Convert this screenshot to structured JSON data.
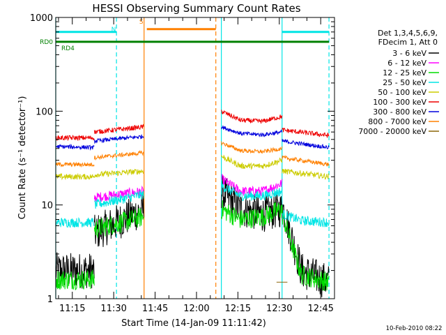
{
  "chart_data": {
    "type": "line",
    "title": "HESSI Observing Summary Count Rates",
    "xlabel": "Start Time (14-Jan-09 11:11:42)",
    "ylabel": "Count Rate (s⁻¹ detector⁻¹)",
    "yscale": "log",
    "xlim": [
      "11:09",
      "12:50"
    ],
    "ylim": [
      1,
      1000
    ],
    "xticks": [
      "11:15",
      "11:30",
      "11:45",
      "12:00",
      "12:15",
      "12:30",
      "12:45"
    ],
    "yticks": [
      "1",
      "10",
      "100",
      "1000"
    ],
    "date_stamp": "10-Feb-2010 08:22",
    "legend": {
      "position": "right",
      "header": [
        "Det 1,3,4,5,6,9,",
        "FDecim 1, Att 0"
      ],
      "entries": [
        {
          "label": "3 - 6 keV",
          "color": "#000000"
        },
        {
          "label": "6 - 12 keV",
          "color": "#ff00ff"
        },
        {
          "label": "12 - 25 keV",
          "color": "#00dd00"
        },
        {
          "label": "25 - 50 keV",
          "color": "#00e5e5"
        },
        {
          "label": "50 - 100 keV",
          "color": "#cccc00"
        },
        {
          "label": "100 - 300 keV",
          "color": "#ee0000"
        },
        {
          "label": "300 - 800 keV",
          "color": "#0000dd"
        },
        {
          "label": "800 - 7000 keV",
          "color": "#ff8000"
        },
        {
          "label": "7000 - 20000 keV",
          "color": "#8b6508"
        }
      ]
    },
    "flags": [
      {
        "label": "N",
        "color": "#00e5e5",
        "level": 700,
        "segments": [
          [
            "11:09",
            "11:31"
          ],
          [
            "12:31",
            "12:48"
          ]
        ]
      },
      {
        "label": "S",
        "color": "#ff8000",
        "level": 750,
        "segments": [
          [
            "11:42",
            "12:07"
          ]
        ]
      },
      {
        "label": "RD0",
        "color": "#008000",
        "level": 550,
        "segments": [
          [
            "11:09",
            "12:48"
          ]
        ]
      },
      {
        "label": "RD4",
        "color": "#008000",
        "level": 550,
        "segments": []
      }
    ],
    "markers": [
      {
        "time": "11:09",
        "color": "#00e5e5",
        "style": "solid"
      },
      {
        "time": "11:31",
        "color": "#00e5e5",
        "style": "dashed"
      },
      {
        "time": "11:41",
        "color": "#ff8000",
        "style": "solid"
      },
      {
        "time": "12:07",
        "color": "#ff8000",
        "style": "dashed"
      },
      {
        "time": "12:09",
        "color": "#00e5e5",
        "style": "solid"
      },
      {
        "time": "12:31",
        "color": "#00e5e5",
        "style": "solid"
      },
      {
        "time": "12:48",
        "color": "#00e5e5",
        "style": "dashed"
      }
    ],
    "intervals": [
      [
        "11:09",
        "11:41"
      ],
      [
        "12:09",
        "12:48"
      ]
    ],
    "series": [
      {
        "name": "3 - 6 keV",
        "color": "#000000",
        "noise": 0.45,
        "segments": [
          {
            "x": [
              "11:09",
              "11:23"
            ],
            "y": [
              2,
              2
            ]
          },
          {
            "x": [
              "11:23",
              "11:41"
            ],
            "y": [
              5,
              9
            ]
          },
          {
            "x": [
              "12:09",
              "12:16",
              "12:24",
              "12:31"
            ],
            "y": [
              14,
              9,
              8,
              9
            ]
          },
          {
            "x": [
              "12:31",
              "12:38",
              "12:48"
            ],
            "y": [
              10,
              2,
              1.5
            ]
          }
        ]
      },
      {
        "name": "6 - 12 keV",
        "color": "#ff00ff",
        "noise": 0.12,
        "segments": [
          {
            "x": [
              "11:23",
              "11:41"
            ],
            "y": [
              12,
              14
            ]
          },
          {
            "x": [
              "12:09",
              "12:16",
              "12:24",
              "12:31"
            ],
            "y": [
              19,
              14,
              14,
              17
            ]
          }
        ]
      },
      {
        "name": "12 - 25 keV",
        "color": "#00dd00",
        "noise": 0.25,
        "segments": [
          {
            "x": [
              "11:09",
              "11:23"
            ],
            "y": [
              1.6,
              1.6
            ]
          },
          {
            "x": [
              "11:23",
              "11:41"
            ],
            "y": [
              5.5,
              7.5
            ]
          },
          {
            "x": [
              "12:09",
              "12:16",
              "12:24",
              "12:31"
            ],
            "y": [
              9,
              7,
              7.5,
              9
            ]
          },
          {
            "x": [
              "12:31",
              "12:38",
              "12:48"
            ],
            "y": [
              8,
              1.8,
              1.5
            ]
          }
        ]
      },
      {
        "name": "25 - 50 keV",
        "color": "#00e5e5",
        "noise": 0.12,
        "segments": [
          {
            "x": [
              "11:09",
              "11:23"
            ],
            "y": [
              6.5,
              6.5
            ]
          },
          {
            "x": [
              "11:23",
              "11:41"
            ],
            "y": [
              10,
              13
            ]
          },
          {
            "x": [
              "12:09",
              "12:16",
              "12:24",
              "12:31"
            ],
            "y": [
              16,
              12.5,
              12.5,
              14
            ]
          },
          {
            "x": [
              "12:31",
              "12:38",
              "12:48"
            ],
            "y": [
              8,
              6.8,
              6.5
            ]
          }
        ]
      },
      {
        "name": "50 - 100 keV",
        "color": "#cccc00",
        "noise": 0.07,
        "segments": [
          {
            "x": [
              "11:09",
              "11:23"
            ],
            "y": [
              20,
              20
            ]
          },
          {
            "x": [
              "11:23",
              "11:41"
            ],
            "y": [
              21,
              23
            ]
          },
          {
            "x": [
              "12:09",
              "12:16",
              "12:24",
              "12:31"
            ],
            "y": [
              33,
              26,
              26,
              30
            ]
          },
          {
            "x": [
              "12:31",
              "12:48"
            ],
            "y": [
              23,
              20
            ]
          }
        ]
      },
      {
        "name": "100 - 300 keV",
        "color": "#ee0000",
        "noise": 0.06,
        "segments": [
          {
            "x": [
              "11:09",
              "11:23"
            ],
            "y": [
              52,
              52
            ]
          },
          {
            "x": [
              "11:23",
              "11:41"
            ],
            "y": [
              60,
              68
            ]
          },
          {
            "x": [
              "12:09",
              "12:16",
              "12:24",
              "12:31"
            ],
            "y": [
              100,
              80,
              78,
              88
            ]
          },
          {
            "x": [
              "12:31",
              "12:48"
            ],
            "y": [
              63,
              55
            ]
          }
        ]
      },
      {
        "name": "300 - 800 keV",
        "color": "#0000dd",
        "noise": 0.05,
        "segments": [
          {
            "x": [
              "11:09",
              "11:23"
            ],
            "y": [
              42,
              41
            ]
          },
          {
            "x": [
              "11:23",
              "11:41"
            ],
            "y": [
              48,
              54
            ]
          },
          {
            "x": [
              "12:09",
              "12:16",
              "12:24",
              "12:31"
            ],
            "y": [
              68,
              58,
              56,
              60
            ]
          },
          {
            "x": [
              "12:31",
              "12:48"
            ],
            "y": [
              48,
              41
            ]
          }
        ]
      },
      {
        "name": "800 - 7000 keV",
        "color": "#ff8000",
        "noise": 0.05,
        "segments": [
          {
            "x": [
              "11:09",
              "11:23"
            ],
            "y": [
              27,
              27
            ]
          },
          {
            "x": [
              "11:23",
              "11:41"
            ],
            "y": [
              32,
              36
            ]
          },
          {
            "x": [
              "12:09",
              "12:16",
              "12:24",
              "12:31"
            ],
            "y": [
              46,
              38,
              37,
              40
            ]
          },
          {
            "x": [
              "12:31",
              "12:48"
            ],
            "y": [
              32,
              27
            ]
          }
        ]
      },
      {
        "name": "7000 - 20000 keV",
        "color": "#8b6508",
        "noise": 0.0,
        "segments": [
          {
            "x": [
              "12:29",
              "12:33"
            ],
            "y": [
              1.5,
              1.5
            ]
          }
        ]
      }
    ]
  }
}
